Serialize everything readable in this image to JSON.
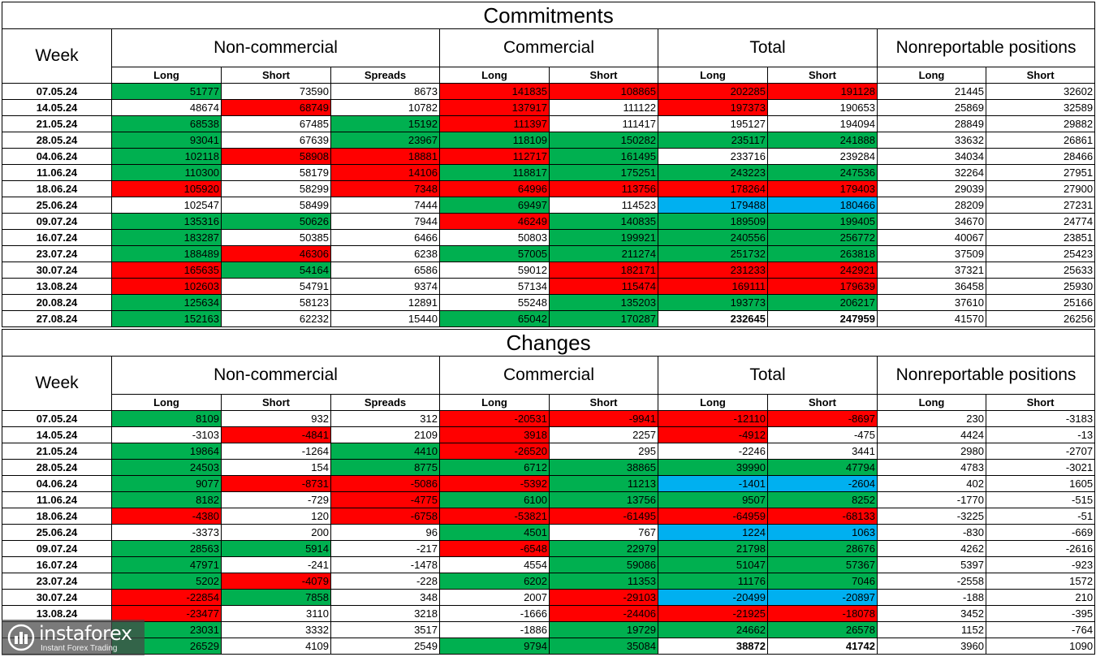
{
  "headers": {
    "week": "Week",
    "non_commercial": "Non-commercial",
    "commercial": "Commercial",
    "total": "Total",
    "nonreportable": "Nonreportable positions",
    "long": "Long",
    "short": "Short",
    "spreads": "Spreads"
  },
  "colors": {
    "green": "#00b050",
    "red": "#ff0000",
    "blue": "#00b0f0"
  },
  "commitments": {
    "title": "Commitments",
    "rows": [
      {
        "week": "07.05.24",
        "values": [
          "51777",
          "73590",
          "8673",
          "141835",
          "108865",
          "202285",
          "191128",
          "21445",
          "32602"
        ],
        "colors": [
          "g",
          "",
          "",
          "r",
          "r",
          "r",
          "r",
          "",
          ""
        ]
      },
      {
        "week": "14.05.24",
        "values": [
          "48674",
          "68749",
          "10782",
          "137917",
          "111122",
          "197373",
          "190653",
          "25869",
          "32589"
        ],
        "colors": [
          "",
          "r",
          "",
          "r",
          "",
          "r",
          "",
          "",
          ""
        ]
      },
      {
        "week": "21.05.24",
        "values": [
          "68538",
          "67485",
          "15192",
          "111397",
          "111417",
          "195127",
          "194094",
          "28849",
          "29882"
        ],
        "colors": [
          "g",
          "",
          "g",
          "r",
          "",
          "",
          "",
          "",
          ""
        ]
      },
      {
        "week": "28.05.24",
        "values": [
          "93041",
          "67639",
          "23967",
          "118109",
          "150282",
          "235117",
          "241888",
          "33632",
          "26861"
        ],
        "colors": [
          "g",
          "",
          "g",
          "g",
          "g",
          "g",
          "g",
          "",
          ""
        ]
      },
      {
        "week": "04.06.24",
        "values": [
          "102118",
          "58908",
          "18881",
          "112717",
          "161495",
          "233716",
          "239284",
          "34034",
          "28466"
        ],
        "colors": [
          "g",
          "r",
          "r",
          "r",
          "g",
          "",
          "",
          "",
          ""
        ]
      },
      {
        "week": "11.06.24",
        "values": [
          "110300",
          "58179",
          "14106",
          "118817",
          "175251",
          "243223",
          "247536",
          "32264",
          "27951"
        ],
        "colors": [
          "g",
          "",
          "r",
          "g",
          "g",
          "g",
          "g",
          "",
          ""
        ]
      },
      {
        "week": "18.06.24",
        "values": [
          "105920",
          "58299",
          "7348",
          "64996",
          "113756",
          "178264",
          "179403",
          "29039",
          "27900"
        ],
        "colors": [
          "r",
          "",
          "r",
          "r",
          "r",
          "r",
          "r",
          "",
          ""
        ]
      },
      {
        "week": "25.06.24",
        "values": [
          "102547",
          "58499",
          "7444",
          "69497",
          "114523",
          "179488",
          "180466",
          "28209",
          "27231"
        ],
        "colors": [
          "",
          "",
          "",
          "g",
          "",
          "b",
          "b",
          "",
          ""
        ]
      },
      {
        "week": "09.07.24",
        "values": [
          "135316",
          "50626",
          "7944",
          "46249",
          "140835",
          "189509",
          "199405",
          "34670",
          "24774"
        ],
        "colors": [
          "g",
          "g",
          "",
          "r",
          "g",
          "g",
          "g",
          "",
          ""
        ]
      },
      {
        "week": "16.07.24",
        "values": [
          "183287",
          "50385",
          "6466",
          "50803",
          "199921",
          "240556",
          "256772",
          "40067",
          "23851"
        ],
        "colors": [
          "g",
          "",
          "",
          "",
          "g",
          "g",
          "g",
          "",
          ""
        ]
      },
      {
        "week": "23.07.24",
        "values": [
          "188489",
          "46306",
          "6238",
          "57005",
          "211274",
          "251732",
          "263818",
          "37509",
          "25423"
        ],
        "colors": [
          "g",
          "r",
          "",
          "g",
          "g",
          "g",
          "g",
          "",
          ""
        ]
      },
      {
        "week": "30.07.24",
        "values": [
          "165635",
          "54164",
          "6586",
          "59012",
          "182171",
          "231233",
          "242921",
          "37321",
          "25633"
        ],
        "colors": [
          "r",
          "g",
          "",
          "",
          "r",
          "r",
          "r",
          "",
          ""
        ]
      },
      {
        "week": "13.08.24",
        "values": [
          "102603",
          "54791",
          "9374",
          "57134",
          "115474",
          "169111",
          "179639",
          "36458",
          "25930"
        ],
        "colors": [
          "r",
          "",
          "",
          "",
          "r",
          "r",
          "r",
          "",
          ""
        ]
      },
      {
        "week": "20.08.24",
        "values": [
          "125634",
          "58123",
          "12891",
          "55248",
          "135203",
          "193773",
          "206217",
          "37610",
          "25166"
        ],
        "colors": [
          "g",
          "",
          "",
          "",
          "g",
          "g",
          "g",
          "",
          ""
        ]
      },
      {
        "week": "27.08.24",
        "values": [
          "152163",
          "62232",
          "15440",
          "65042",
          "170287",
          "232645",
          "247959",
          "41570",
          "26256"
        ],
        "colors": [
          "g",
          "",
          "",
          "g",
          "g",
          "",
          "",
          "",
          ""
        ],
        "bold": [
          false,
          false,
          false,
          false,
          false,
          true,
          true,
          false,
          false
        ]
      }
    ]
  },
  "changes": {
    "title": "Changes",
    "rows": [
      {
        "week": "07.05.24",
        "values": [
          "8109",
          "932",
          "312",
          "-20531",
          "-9941",
          "-12110",
          "-8697",
          "230",
          "-3183"
        ],
        "colors": [
          "g",
          "",
          "",
          "r",
          "r",
          "r",
          "r",
          "",
          ""
        ]
      },
      {
        "week": "14.05.24",
        "values": [
          "-3103",
          "-4841",
          "2109",
          "3918",
          "2257",
          "-4912",
          "-475",
          "4424",
          "-13"
        ],
        "colors": [
          "",
          "r",
          "",
          "r",
          "",
          "r",
          "",
          "",
          ""
        ]
      },
      {
        "week": "21.05.24",
        "values": [
          "19864",
          "-1264",
          "4410",
          "-26520",
          "295",
          "-2246",
          "3441",
          "2980",
          "-2707"
        ],
        "colors": [
          "g",
          "",
          "g",
          "r",
          "",
          "",
          "",
          "",
          ""
        ]
      },
      {
        "week": "28.05.24",
        "values": [
          "24503",
          "154",
          "8775",
          "6712",
          "38865",
          "39990",
          "47794",
          "4783",
          "-3021"
        ],
        "colors": [
          "g",
          "",
          "g",
          "g",
          "g",
          "g",
          "g",
          "",
          ""
        ]
      },
      {
        "week": "04.06.24",
        "values": [
          "9077",
          "-8731",
          "-5086",
          "-5392",
          "11213",
          "-1401",
          "-2604",
          "402",
          "1605"
        ],
        "colors": [
          "g",
          "r",
          "r",
          "r",
          "g",
          "b",
          "b",
          "",
          ""
        ]
      },
      {
        "week": "11.06.24",
        "values": [
          "8182",
          "-729",
          "-4775",
          "6100",
          "13756",
          "9507",
          "8252",
          "-1770",
          "-515"
        ],
        "colors": [
          "g",
          "",
          "r",
          "g",
          "g",
          "g",
          "g",
          "",
          ""
        ]
      },
      {
        "week": "18.06.24",
        "values": [
          "-4380",
          "120",
          "-6758",
          "-53821",
          "-61495",
          "-64959",
          "-68133",
          "-3225",
          "-51"
        ],
        "colors": [
          "r",
          "",
          "r",
          "r",
          "r",
          "r",
          "r",
          "",
          ""
        ]
      },
      {
        "week": "25.06.24",
        "values": [
          "-3373",
          "200",
          "96",
          "4501",
          "767",
          "1224",
          "1063",
          "-830",
          "-669"
        ],
        "colors": [
          "",
          "",
          "",
          "g",
          "",
          "b",
          "b",
          "",
          ""
        ]
      },
      {
        "week": "09.07.24",
        "values": [
          "28563",
          "5914",
          "-217",
          "-6548",
          "22979",
          "21798",
          "28676",
          "4262",
          "-2616"
        ],
        "colors": [
          "g",
          "g",
          "",
          "r",
          "g",
          "g",
          "g",
          "",
          ""
        ]
      },
      {
        "week": "16.07.24",
        "values": [
          "47971",
          "-241",
          "-1478",
          "4554",
          "59086",
          "51047",
          "57367",
          "5397",
          "-923"
        ],
        "colors": [
          "g",
          "",
          "",
          "",
          "g",
          "g",
          "g",
          "",
          ""
        ]
      },
      {
        "week": "23.07.24",
        "values": [
          "5202",
          "-4079",
          "-228",
          "6202",
          "11353",
          "11176",
          "7046",
          "-2558",
          "1572"
        ],
        "colors": [
          "g",
          "r",
          "",
          "g",
          "g",
          "g",
          "g",
          "",
          ""
        ]
      },
      {
        "week": "30.07.24",
        "values": [
          "-22854",
          "7858",
          "348",
          "2007",
          "-29103",
          "-20499",
          "-20897",
          "-188",
          "210"
        ],
        "colors": [
          "r",
          "g",
          "",
          "",
          "r",
          "b",
          "b",
          "",
          ""
        ]
      },
      {
        "week": "13.08.24",
        "values": [
          "-23477",
          "3110",
          "3218",
          "-1666",
          "-24406",
          "-21925",
          "-18078",
          "3452",
          "-395"
        ],
        "colors": [
          "r",
          "",
          "",
          "",
          "r",
          "r",
          "r",
          "",
          ""
        ]
      },
      {
        "week": "",
        "values": [
          "23031",
          "3332",
          "3517",
          "-1886",
          "19729",
          "24662",
          "26578",
          "1152",
          "-764"
        ],
        "colors": [
          "g",
          "",
          "",
          "",
          "g",
          "g",
          "g",
          "",
          ""
        ]
      },
      {
        "week": "",
        "values": [
          "26529",
          "4109",
          "2549",
          "9794",
          "35084",
          "38872",
          "41742",
          "3960",
          "1090"
        ],
        "colors": [
          "g",
          "",
          "",
          "g",
          "g",
          "",
          "",
          "",
          ""
        ],
        "bold": [
          false,
          false,
          false,
          false,
          false,
          true,
          true,
          false,
          false
        ]
      }
    ]
  },
  "watermark": {
    "name": "instaforex",
    "tagline": "Instant Forex Trading",
    "icon": "chart-bars-icon"
  }
}
